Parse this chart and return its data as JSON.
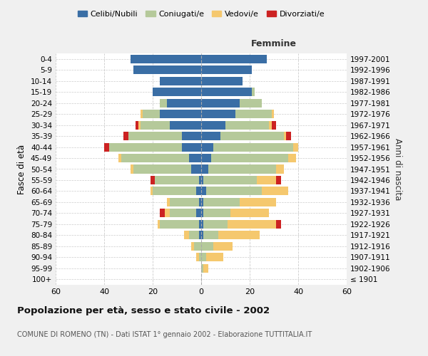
{
  "age_groups": [
    "100+",
    "95-99",
    "90-94",
    "85-89",
    "80-84",
    "75-79",
    "70-74",
    "65-69",
    "60-64",
    "55-59",
    "50-54",
    "45-49",
    "40-44",
    "35-39",
    "30-34",
    "25-29",
    "20-24",
    "15-19",
    "10-14",
    "5-9",
    "0-4"
  ],
  "birth_years": [
    "≤ 1901",
    "1902-1906",
    "1907-1911",
    "1912-1916",
    "1917-1921",
    "1922-1926",
    "1927-1931",
    "1932-1936",
    "1937-1941",
    "1942-1946",
    "1947-1951",
    "1952-1956",
    "1957-1961",
    "1962-1966",
    "1967-1971",
    "1972-1976",
    "1977-1981",
    "1982-1986",
    "1987-1991",
    "1992-1996",
    "1997-2001"
  ],
  "male": {
    "celibi": [
      0,
      0,
      0,
      0,
      1,
      1,
      2,
      1,
      2,
      1,
      4,
      5,
      8,
      8,
      13,
      17,
      14,
      20,
      17,
      28,
      29
    ],
    "coniugati": [
      0,
      0,
      1,
      3,
      4,
      16,
      11,
      12,
      18,
      18,
      24,
      28,
      30,
      22,
      12,
      7,
      3,
      0,
      0,
      0,
      0
    ],
    "vedovi": [
      0,
      0,
      1,
      1,
      2,
      1,
      2,
      1,
      1,
      0,
      1,
      1,
      0,
      0,
      1,
      1,
      0,
      0,
      0,
      0,
      0
    ],
    "divorziati": [
      0,
      0,
      0,
      0,
      0,
      0,
      2,
      0,
      0,
      2,
      0,
      0,
      2,
      2,
      1,
      0,
      0,
      0,
      0,
      0,
      0
    ]
  },
  "female": {
    "nubili": [
      0,
      0,
      0,
      0,
      1,
      1,
      1,
      1,
      2,
      1,
      3,
      4,
      5,
      8,
      10,
      14,
      16,
      21,
      17,
      21,
      27
    ],
    "coniugate": [
      0,
      1,
      2,
      5,
      6,
      10,
      11,
      15,
      23,
      22,
      28,
      32,
      33,
      26,
      18,
      15,
      9,
      1,
      0,
      0,
      0
    ],
    "vedove": [
      0,
      2,
      7,
      8,
      17,
      20,
      16,
      15,
      11,
      8,
      3,
      3,
      2,
      1,
      1,
      1,
      0,
      0,
      0,
      0,
      0
    ],
    "divorziate": [
      0,
      0,
      0,
      0,
      0,
      2,
      0,
      0,
      0,
      2,
      0,
      0,
      0,
      2,
      2,
      0,
      0,
      0,
      0,
      0,
      0
    ]
  },
  "colors": {
    "celibi": "#3A6EA5",
    "coniugati": "#B5C99A",
    "vedovi": "#F5C86E",
    "divorziati": "#CC2222"
  },
  "xlim": 60,
  "title": "Popolazione per età, sesso e stato civile - 2002",
  "subtitle": "COMUNE DI ROMENO (TN) - Dati ISTAT 1° gennaio 2002 - Elaborazione TUTTITALIA.IT",
  "ylabel_left": "Fasce di età",
  "ylabel_right": "Anni di nascita",
  "xlabel_right": "Femmine",
  "legend_labels": [
    "Celibi/Nubili",
    "Coniugati/e",
    "Vedovi/e",
    "Divorziati/e"
  ],
  "background_color": "#f0f0f0",
  "plot_bg_color": "#ffffff"
}
